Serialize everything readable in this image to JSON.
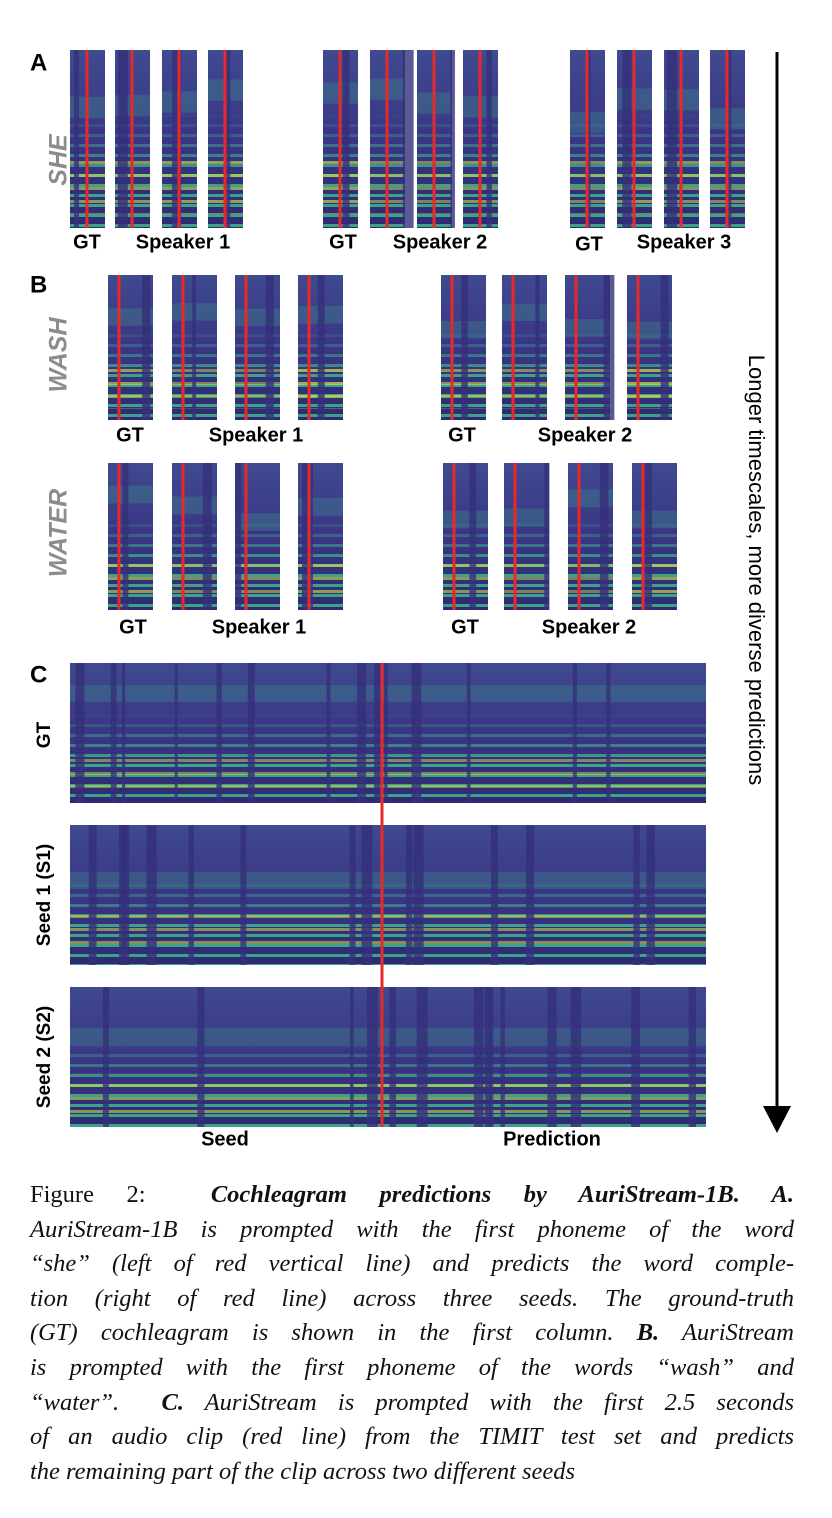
{
  "figure": {
    "panel_a": {
      "label": "A",
      "word": "SHE",
      "groups": [
        {
          "gt": "GT",
          "speaker": "Speaker 1"
        },
        {
          "gt": "GT",
          "speaker": "Speaker 2"
        },
        {
          "gt": "GT",
          "speaker": "Speaker 3"
        }
      ]
    },
    "panel_b": {
      "label": "B",
      "words": [
        {
          "word": "WASH",
          "groups": [
            {
              "gt": "GT",
              "speaker": "Speaker 1"
            },
            {
              "gt": "GT",
              "speaker": "Speaker 2"
            }
          ]
        },
        {
          "word": "WATER",
          "groups": [
            {
              "gt": "GT",
              "speaker": "Speaker 1"
            },
            {
              "gt": "GT",
              "speaker": "Speaker 2"
            }
          ]
        }
      ]
    },
    "panel_c": {
      "label": "C",
      "rows": [
        "GT",
        "Seed 1 (S1)",
        "Seed 2 (S2)"
      ],
      "x_labels": [
        "Seed",
        "Prediction"
      ]
    },
    "arrow_label": "Longer timescales, more diverse predictions"
  },
  "caption": {
    "lines": [
      [
        "Figure 2:",
        "Cochleagram predictions by AuriStream-1B. A."
      ],
      [
        "AuriStream-1B is prompted with the first phoneme of the word"
      ],
      [
        "“she” (left of red vertical line) and predicts the word comple-"
      ],
      [
        "tion (right of red line) across three seeds.  The ground-truth"
      ],
      [
        "(GT) cochleagram is shown in the first column.",
        "B.",
        "AuriStream"
      ],
      [
        "is prompted with the first phoneme of the words “wash” and"
      ],
      [
        "“water”.",
        "C.",
        "AuriStream is prompted with the first 2.5 seconds"
      ],
      [
        "of an audio clip (red line) from the TIMIT test set and predicts"
      ],
      [
        "the remaining part of the clip across two different seeds"
      ]
    ]
  }
}
